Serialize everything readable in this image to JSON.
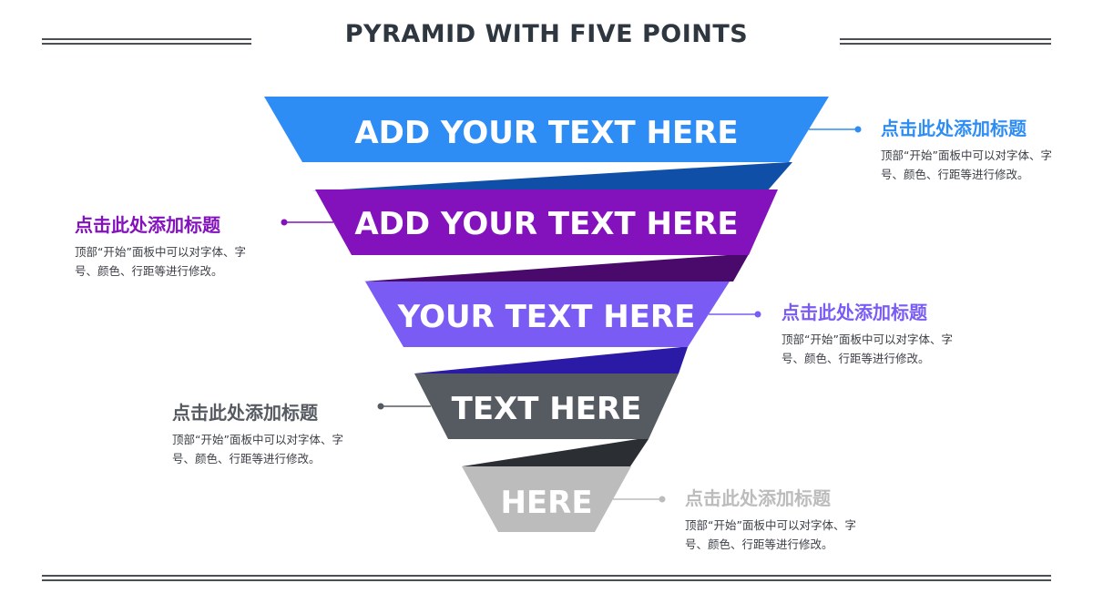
{
  "title": "PYRAMID WITH FIVE POINTS",
  "tiers": [
    {
      "label": "ADD YOUR TEXT HERE",
      "color": "#2e8df5"
    },
    {
      "label": "ADD YOUR TEXT HERE",
      "color": "#8312bd"
    },
    {
      "label": "YOUR TEXT HERE",
      "color": "#7a5cf5"
    },
    {
      "label": "TEXT HERE",
      "color": "#565a61"
    },
    {
      "label": "HERE",
      "color": "#bcbcbc"
    }
  ],
  "callouts": [
    {
      "title": "点击此处添加标题",
      "body": "顶部“开始”面板中可以对字体、字号、颜色、行距等进行修改。",
      "color": "#2e8df5"
    },
    {
      "title": "点击此处添加标题",
      "body": "顶部“开始”面板中可以对字体、字号、颜色、行距等进行修改。",
      "color": "#8312bd"
    },
    {
      "title": "点击此处添加标题",
      "body": "顶部“开始”面板中可以对字体、字号、颜色、行距等进行修改。",
      "color": "#7a5cf5"
    },
    {
      "title": "点击此处添加标题",
      "body": "顶部“开始”面板中可以对字体、字号、颜色、行距等进行修改。",
      "color": "#565a61"
    },
    {
      "title": "点击此处添加标题",
      "body": "顶部“开始”面板中可以对字体、字号、颜色、行距等进行修改。",
      "color": "#bcbcbc"
    }
  ]
}
